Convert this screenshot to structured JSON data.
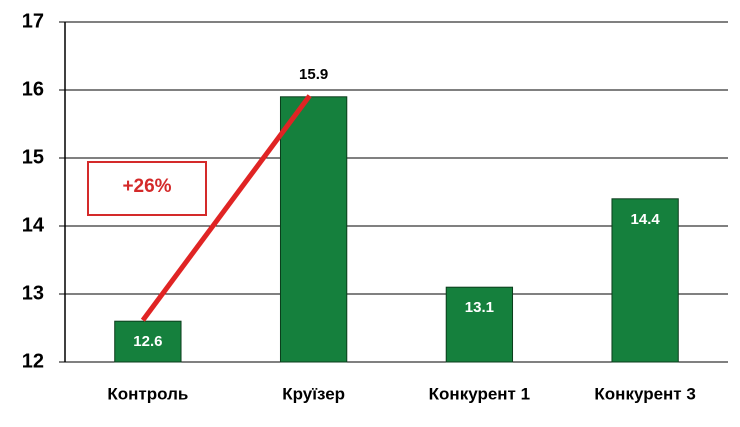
{
  "chart_data": {
    "type": "bar",
    "categories": [
      "Контроль",
      "Круїзер",
      "Конкурент 1",
      "Конкурент 3"
    ],
    "values": [
      12.6,
      15.9,
      13.1,
      14.4
    ],
    "color": "#15803d",
    "ylim": [
      12,
      17
    ],
    "yticks": [
      12,
      13,
      14,
      15,
      16,
      17
    ],
    "grid": true,
    "annotation": "+26%"
  }
}
